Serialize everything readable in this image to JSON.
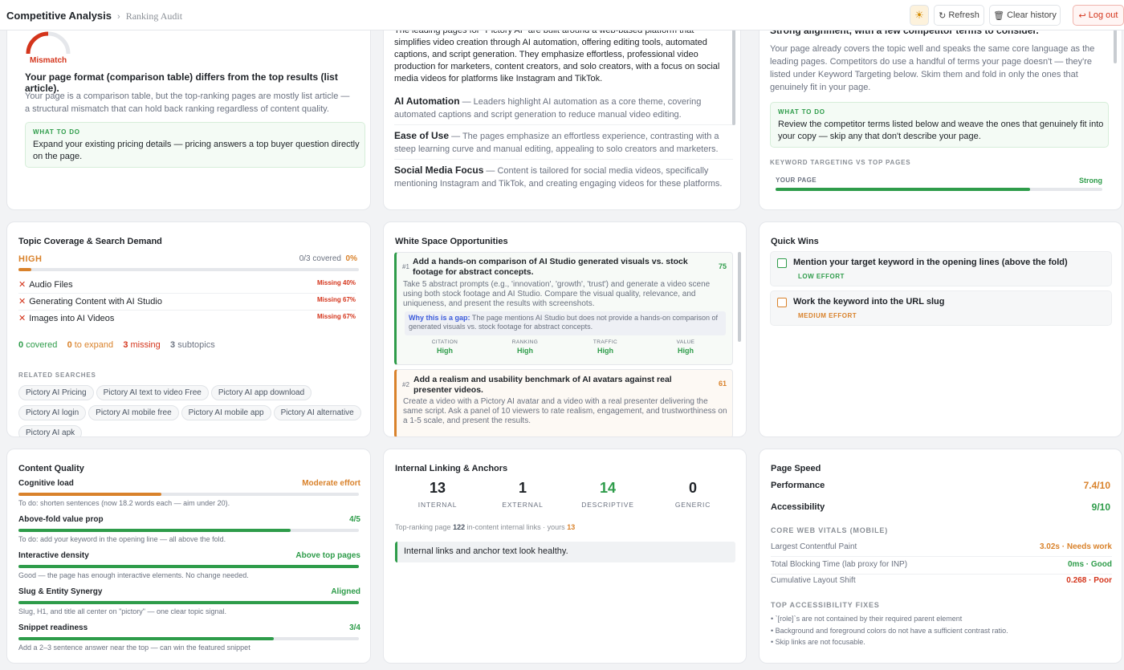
{
  "header": {
    "app_title": "Competitive Analysis",
    "breadcrumb_sep": "›",
    "page": "Ranking Audit",
    "theme_icon": "☀",
    "refresh": "Refresh",
    "clear": "Clear history",
    "logout": "Log out"
  },
  "format": {
    "gauge_label": "Mismatch",
    "headline": "Your page format (comparison table) differs from the top results (list article).",
    "body": "Your page is a comparison table, but the top-ranking pages are mostly list article — a structural mismatch that can hold back ranking regardless of content quality.",
    "todo_label": "WHAT TO DO",
    "todo": "Expand your existing pricing details — pricing answers a top buyer question directly on the page."
  },
  "themes": {
    "intro": "The leading pages for \"Pictory AI\" are built around a web-based platform that simplifies video creation through AI automation, offering editing tools, automated captions, and script generation. They emphasize effortless, professional video production for marketers, content creators, and solo creators, with a focus on social media videos for platforms like Instagram and TikTok.",
    "items": [
      {
        "title": "AI Automation",
        "text": " — Leaders highlight AI automation as a core theme, covering automated captions and script generation to reduce manual video editing."
      },
      {
        "title": "Ease of Use",
        "text": " — The pages emphasize an effortless experience, contrasting with a steep learning curve and manual editing, appealing to solo creators and marketers."
      },
      {
        "title": "Social Media Focus",
        "text": " — Content is tailored for social media videos, specifically mentioning Instagram and TikTok, and creating engaging videos for these platforms."
      }
    ]
  },
  "alignment": {
    "headline": "Strong alignment, with a few competitor terms to consider.",
    "body": "Your page already covers the topic well and speaks the same core language as the leading pages. Competitors do use a handful of terms your page doesn't — they're listed under Keyword Targeting below. Skim them and fold in only the ones that genuinely fit in your page.",
    "todo_label": "WHAT TO DO",
    "todo": "Review the competitor terms listed below and weave the ones that genuinely fit into your copy — skip any that don't describe your page.",
    "kw_label": "KEYWORD TARGETING VS TOP PAGES",
    "your_page": "YOUR PAGE",
    "status": "Strong",
    "level": 0.78
  },
  "topic": {
    "title": "Topic Coverage & Search Demand",
    "demand": "HIGH",
    "covered_text": "0/3 covered",
    "covered_pct": "0%",
    "items": [
      {
        "name": "Audio Files",
        "status": "Missing 40%"
      },
      {
        "name": "Generating Content with AI Studio",
        "status": "Missing 67%"
      },
      {
        "name": "Images into AI Videos",
        "status": "Missing 67%"
      }
    ],
    "summary": {
      "covered_n": "0",
      "covered": "covered",
      "expand_n": "0",
      "expand": "to expand",
      "missing_n": "3",
      "missing": "missing",
      "sub_n": "3",
      "sub": "subtopics"
    },
    "related_label": "RELATED SEARCHES",
    "related": [
      "Pictory AI Pricing",
      "Pictory AI text to video Free",
      "Pictory AI app download",
      "Pictory AI login",
      "Pictory AI mobile free",
      "Pictory AI mobile app",
      "Pictory AI alternative",
      "Pictory AI apk"
    ]
  },
  "whitespace": {
    "title": "White Space Opportunities",
    "items": [
      {
        "rank": "#1",
        "title": "Add a hands-on comparison of AI Studio generated visuals vs. stock footage for abstract concepts.",
        "score": "75",
        "body": "Take 5 abstract prompts (e.g., 'innovation', 'growth', 'trust') and generate a video scene using both stock footage and AI Studio. Compare the visual quality, relevance, and uniqueness, and present the results with screenshots.",
        "gap_label": "Why this is a gap:",
        "gap": " The page mentions AI Studio but does not provide a hands-on comparison of generated visuals vs. stock footage for abstract concepts.",
        "metrics": [
          {
            "k": "CITATION",
            "v": "High"
          },
          {
            "k": "RANKING",
            "v": "High"
          },
          {
            "k": "TRAFFIC",
            "v": "High"
          },
          {
            "k": "VALUE",
            "v": "High"
          }
        ]
      },
      {
        "rank": "#2",
        "title": "Add a realism and usability benchmark of AI avatars against real presenter videos.",
        "score": "61",
        "body": "Create a video with a Pictory AI avatar and a video with a real presenter delivering the same script. Ask a panel of 10 viewers to rate realism, engagement, and trustworthiness on a 1-5 scale, and present the results."
      }
    ]
  },
  "quickwins": {
    "title": "Quick Wins",
    "items": [
      {
        "label": "Mention your target keyword in the opening lines (above the fold)",
        "effort": "LOW EFFORT"
      },
      {
        "label": "Work the keyword into the URL slug",
        "effort": "MEDIUM EFFORT"
      }
    ]
  },
  "quality": {
    "title": "Content Quality",
    "items": [
      {
        "name": "Cognitive load",
        "status": "Moderate effort",
        "note": "To do: shorten sentences (now 18.2 words each — aim under 20).",
        "level": 0.42,
        "color": "#d9822b"
      },
      {
        "name": "Above-fold value prop",
        "status": "4/5",
        "note": "To do: add your keyword in the opening line — all above the fold.",
        "level": 0.8,
        "color": "#2e9c4a"
      },
      {
        "name": "Interactive density",
        "status": "Above top pages",
        "note": "Good — the page has enough interactive elements. No change needed.",
        "level": 1.0,
        "color": "#2e9c4a"
      },
      {
        "name": "Slug & Entity Synergy",
        "status": "Aligned",
        "note": "Slug, H1, and title all center on \"pictory\" — one clear topic signal.",
        "level": 1.0,
        "color": "#2e9c4a"
      },
      {
        "name": "Snippet readiness",
        "status": "3/4",
        "note": "Add a 2–3 sentence answer near the top — can win the featured snippet",
        "level": 0.75,
        "color": "#2e9c4a"
      }
    ]
  },
  "linking": {
    "title": "Internal Linking & Anchors",
    "stats": [
      {
        "n": "13",
        "label": "INTERNAL"
      },
      {
        "n": "1",
        "label": "EXTERNAL"
      },
      {
        "n": "14",
        "label": "DESCRIPTIVE"
      },
      {
        "n": "0",
        "label": "GENERIC"
      }
    ],
    "top_prefix": "Top-ranking page",
    "top_n": "122",
    "top_mid": "in-content internal links · yours",
    "yours_n": "13",
    "note": "Internal links and anchor text look healthy."
  },
  "speed": {
    "title": "Page Speed",
    "performance_label": "Performance",
    "performance": "7.4/10",
    "accessibility_label": "Accessibility",
    "accessibility": "9/10",
    "cwv_label": "CORE WEB VITALS (MOBILE)",
    "vitals": [
      {
        "name": "Largest Contentful Paint",
        "value": "3.02s · Needs work",
        "color": "#d9822b"
      },
      {
        "name": "Total Blocking Time (lab proxy for INP)",
        "value": "0ms · Good",
        "color": "#2e9c4a"
      },
      {
        "name": "Cumulative Layout Shift",
        "value": "0.268 · Poor",
        "color": "#d4351c"
      }
    ],
    "fix_label": "TOP ACCESSIBILITY FIXES",
    "fixes": [
      "• `[role]`s are not contained by their required parent element",
      "• Background and foreground colors do not have a sufficient contrast ratio.",
      "• Skip links are not focusable."
    ]
  }
}
